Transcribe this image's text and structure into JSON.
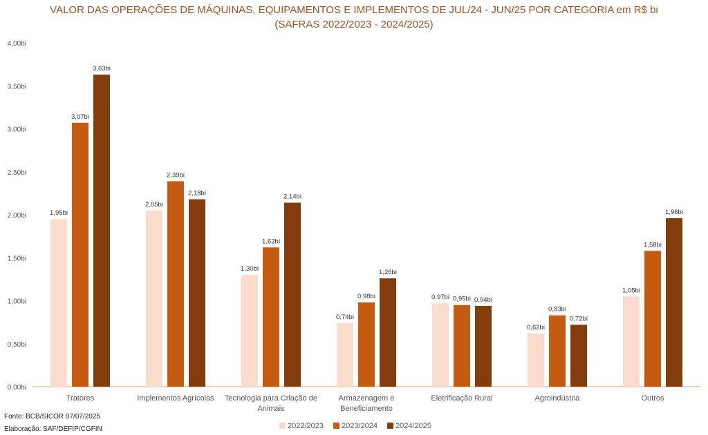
{
  "chart_data": {
    "type": "bar",
    "title": "VALOR DAS OPERAÇÕES DE MÁQUINAS, EQUIPAMENTOS E IMPLEMENTOS DE JUL/24 - JUN/25 POR CATEGORIA em R$ bi",
    "subtitle": "(SAFRAS 2022/2023 - 2024/2025)",
    "categories": [
      [
        "Tratores"
      ],
      [
        "Implementos Agrícolas"
      ],
      [
        "Tecnologia para Criação de",
        "Animais"
      ],
      [
        "Armazenagem e",
        "Beneficiamento"
      ],
      [
        "Eletrificação Rural"
      ],
      [
        "Agroindústria"
      ],
      [
        "Outros"
      ]
    ],
    "series": [
      {
        "name": "2022/2023",
        "color": "#F9DCCB",
        "values": [
          1.95,
          2.05,
          1.3,
          0.74,
          0.97,
          0.62,
          1.05
        ],
        "labels": [
          "1,95bi",
          "2,05bi",
          "1,30bi",
          "0,74bi",
          "0,97bi",
          "0,62bi",
          "1,05bi"
        ]
      },
      {
        "name": "2023/2024",
        "color": "#C55A11",
        "values": [
          3.07,
          2.39,
          1.62,
          0.98,
          0.95,
          0.83,
          1.58
        ],
        "labels": [
          "3,07bi",
          "2,39bi",
          "1,62bi",
          "0,98bi",
          "0,95bi",
          "0,83bi",
          "1,58bi"
        ]
      },
      {
        "name": "2024/2025",
        "color": "#843C0C",
        "values": [
          3.63,
          2.18,
          2.14,
          1.26,
          0.94,
          0.72,
          1.96
        ],
        "labels": [
          "3,63bi",
          "2,18bi",
          "2,14bi",
          "1,26bi",
          "0,94bi",
          "0,72bi",
          "1,96bi"
        ]
      }
    ],
    "ylim": [
      0,
      4
    ],
    "yticks": [
      0,
      0.5,
      1,
      1.5,
      2,
      2.5,
      3,
      3.5,
      4
    ],
    "ytick_labels": [
      "0,00bi",
      "0,50bi",
      "1,00bi",
      "1,50bi",
      "2,00bi",
      "2,50bi",
      "3,00bi",
      "3,50bi",
      "4,00bi"
    ],
    "grid": false,
    "legend": "bottom"
  },
  "footer": {
    "source": "Fonte: BCB/SICOR  07/07/2025",
    "author": "Elaboração: SAF/DEFIP/CGFIN"
  }
}
